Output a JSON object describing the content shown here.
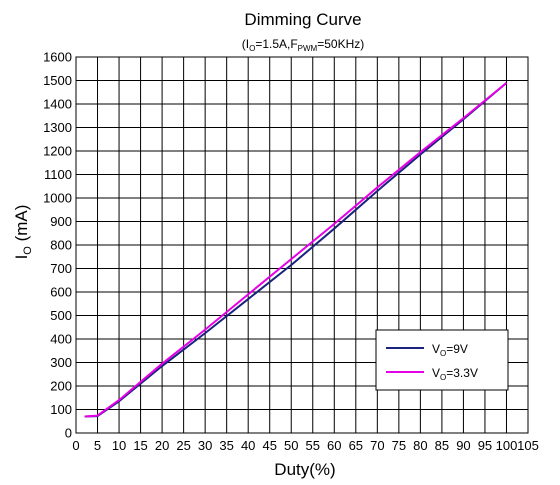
{
  "chart_data": {
    "type": "line",
    "title": "Dimming Curve",
    "subtitle": {
      "open": "(I",
      "sub1": "O",
      "mid": "=1.5A,F",
      "sub2": "PWM",
      "close": "=50KHz)"
    },
    "xlabel": "Duty(%)",
    "ylabel": {
      "main": "I",
      "sub": "O",
      "rest": " (mA)"
    },
    "xlim": [
      0,
      105
    ],
    "ylim": [
      0,
      1600
    ],
    "xticks": [
      0,
      5,
      10,
      15,
      20,
      25,
      30,
      35,
      40,
      45,
      50,
      55,
      60,
      65,
      70,
      75,
      80,
      85,
      90,
      95,
      100,
      105
    ],
    "xtick_labels": [
      "0",
      "5",
      "10",
      "15",
      "20",
      "25",
      "30",
      "35",
      "40",
      "45",
      "50",
      "55",
      "60",
      "65",
      "70",
      "75",
      "80",
      "85",
      "90",
      "95",
      "100",
      "105"
    ],
    "yticks": [
      0,
      100,
      200,
      300,
      400,
      500,
      600,
      700,
      800,
      900,
      1000,
      1100,
      1200,
      1300,
      1400,
      1500,
      1600
    ],
    "ytick_labels": [
      "0",
      "100",
      "200",
      "300",
      "400",
      "500",
      "600",
      "700",
      "800",
      "900",
      "1000",
      "1100",
      "1200",
      "1300",
      "1400",
      "1500",
      "1600"
    ],
    "grid": true,
    "legend_position": "bottom-right",
    "series": [
      {
        "name": {
          "main": "V",
          "sub": "O",
          "rest": "=9V"
        },
        "color": "#1a237e",
        "x": [
          2,
          5,
          10,
          20,
          30,
          40,
          50,
          60,
          70,
          80,
          90,
          100
        ],
        "y": [
          70,
          72,
          135,
          285,
          425,
          570,
          715,
          870,
          1030,
          1185,
          1335,
          1490
        ]
      },
      {
        "name": {
          "main": "V",
          "sub": "O",
          "rest": "=3.3V"
        },
        "color": "#e600e6",
        "x": [
          2,
          5,
          10,
          20,
          30,
          40,
          50,
          60,
          70,
          80,
          90,
          100
        ],
        "y": [
          70,
          74,
          140,
          295,
          440,
          590,
          740,
          890,
          1045,
          1195,
          1340,
          1490
        ]
      }
    ]
  }
}
